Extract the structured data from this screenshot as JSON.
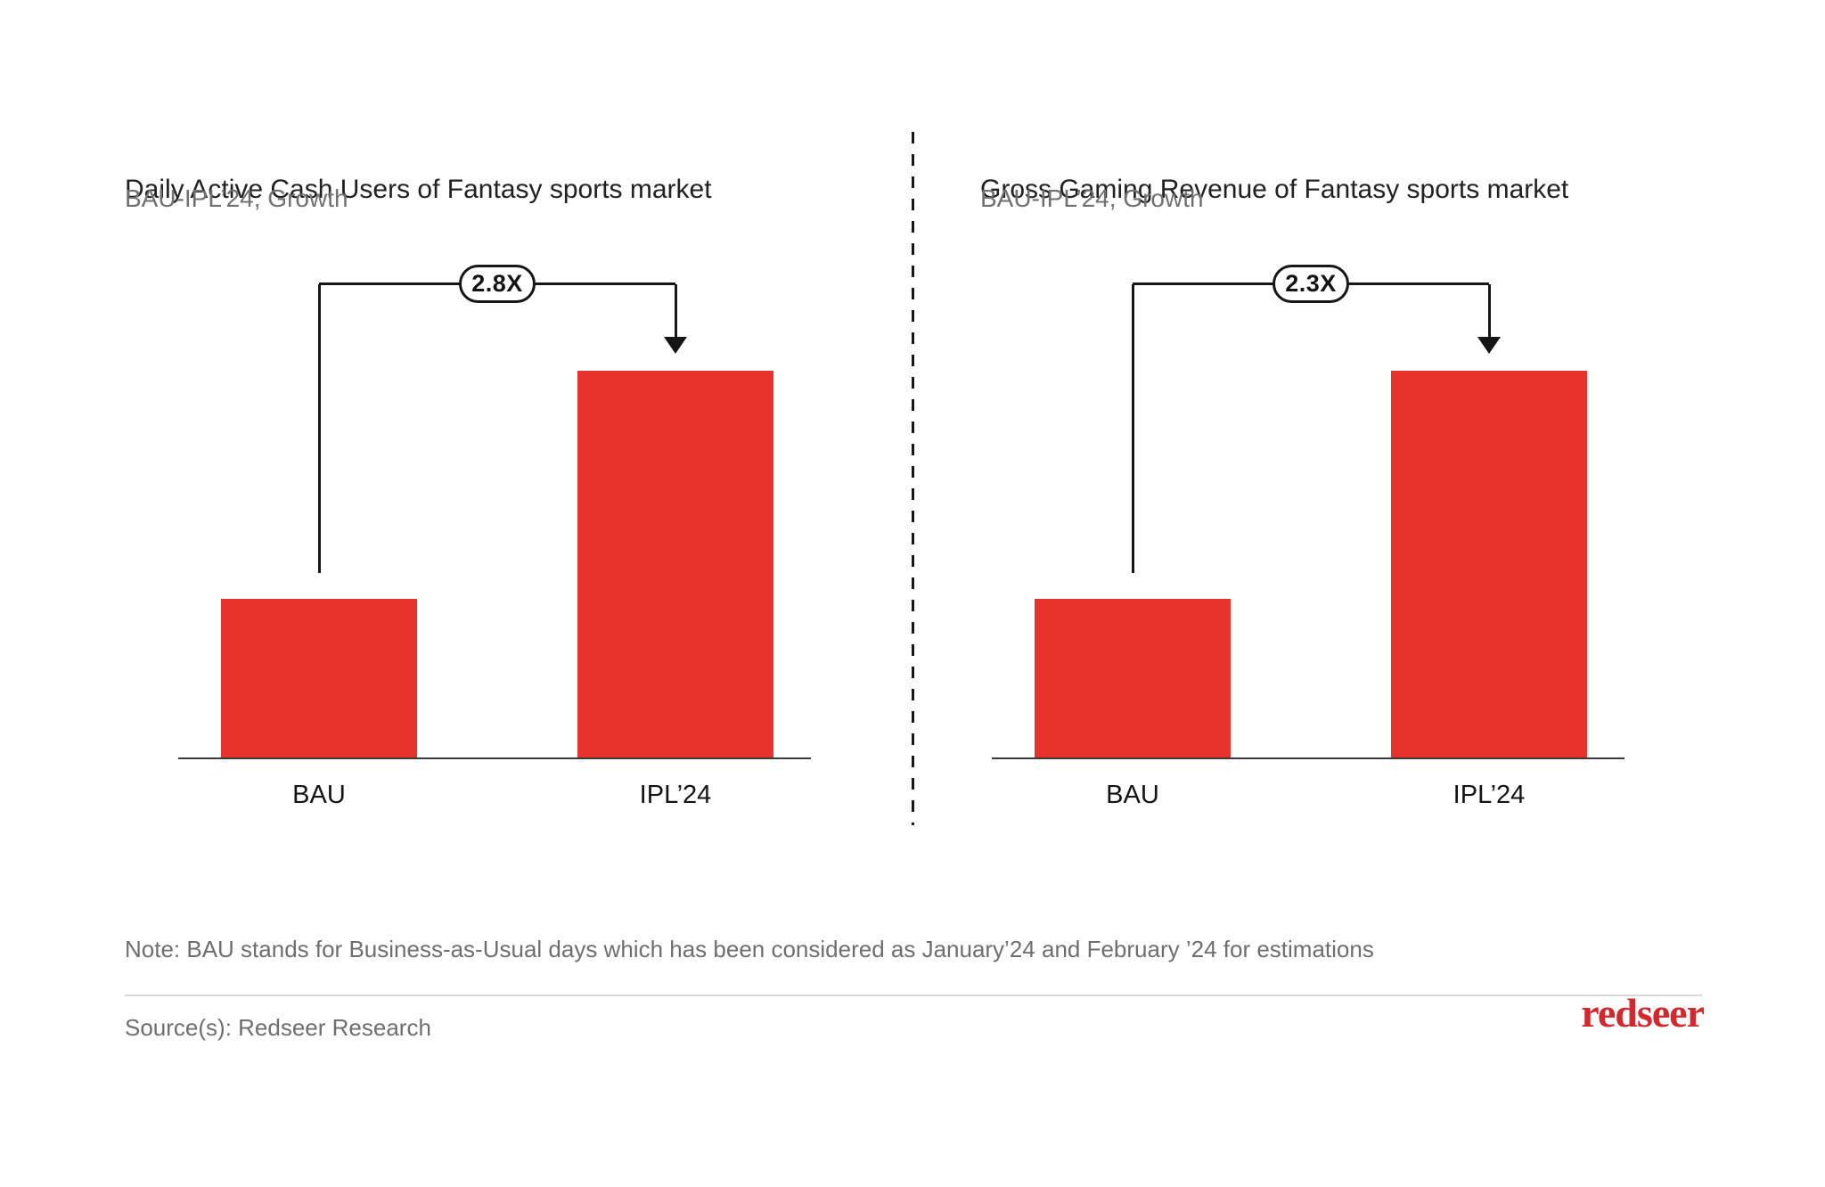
{
  "colors": {
    "bar_red": "#E8332C",
    "logo_red": "#D2282E",
    "annotation_black": "#161616",
    "title_text": "#212121",
    "gray_text": "#6e6e6e",
    "footer_rule_gray": "#dadada"
  },
  "chart_data": [
    {
      "type": "bar",
      "title": "Daily Active Cash Users of Fantasy sports market",
      "subtitle": "BAU-IPL’24, Growth",
      "categories": [
        "BAU",
        "IPL’24"
      ],
      "values_relative_to_bau": [
        1,
        2.8
      ],
      "growth_label": "2.8X",
      "annotation": {
        "from": "BAU",
        "to": "IPL’24",
        "label": "2.8X"
      },
      "bar_color": "#E8332C",
      "grid": false,
      "value_axis_shown": false,
      "bar_height_fraction_of_plot": [
        0.307,
        0.748
      ]
    },
    {
      "type": "bar",
      "title": "Gross Gaming Revenue of Fantasy sports market",
      "subtitle": "BAU-IPL’24, Growth",
      "categories": [
        "BAU",
        "IPL’24"
      ],
      "values_relative_to_bau": [
        1,
        2.3
      ],
      "growth_label": "2.3X",
      "annotation": {
        "from": "BAU",
        "to": "IPL’24",
        "label": "2.3X"
      },
      "bar_color": "#E8332C",
      "grid": false,
      "value_axis_shown": false,
      "bar_height_fraction_of_plot": [
        0.307,
        0.748
      ]
    }
  ],
  "footer": {
    "note": "Note: BAU stands for Business-as-Usual days which has been considered as January’24 and February ’24 for estimations",
    "source": "Source(s): Redseer Research",
    "logo_text": "redseer"
  }
}
